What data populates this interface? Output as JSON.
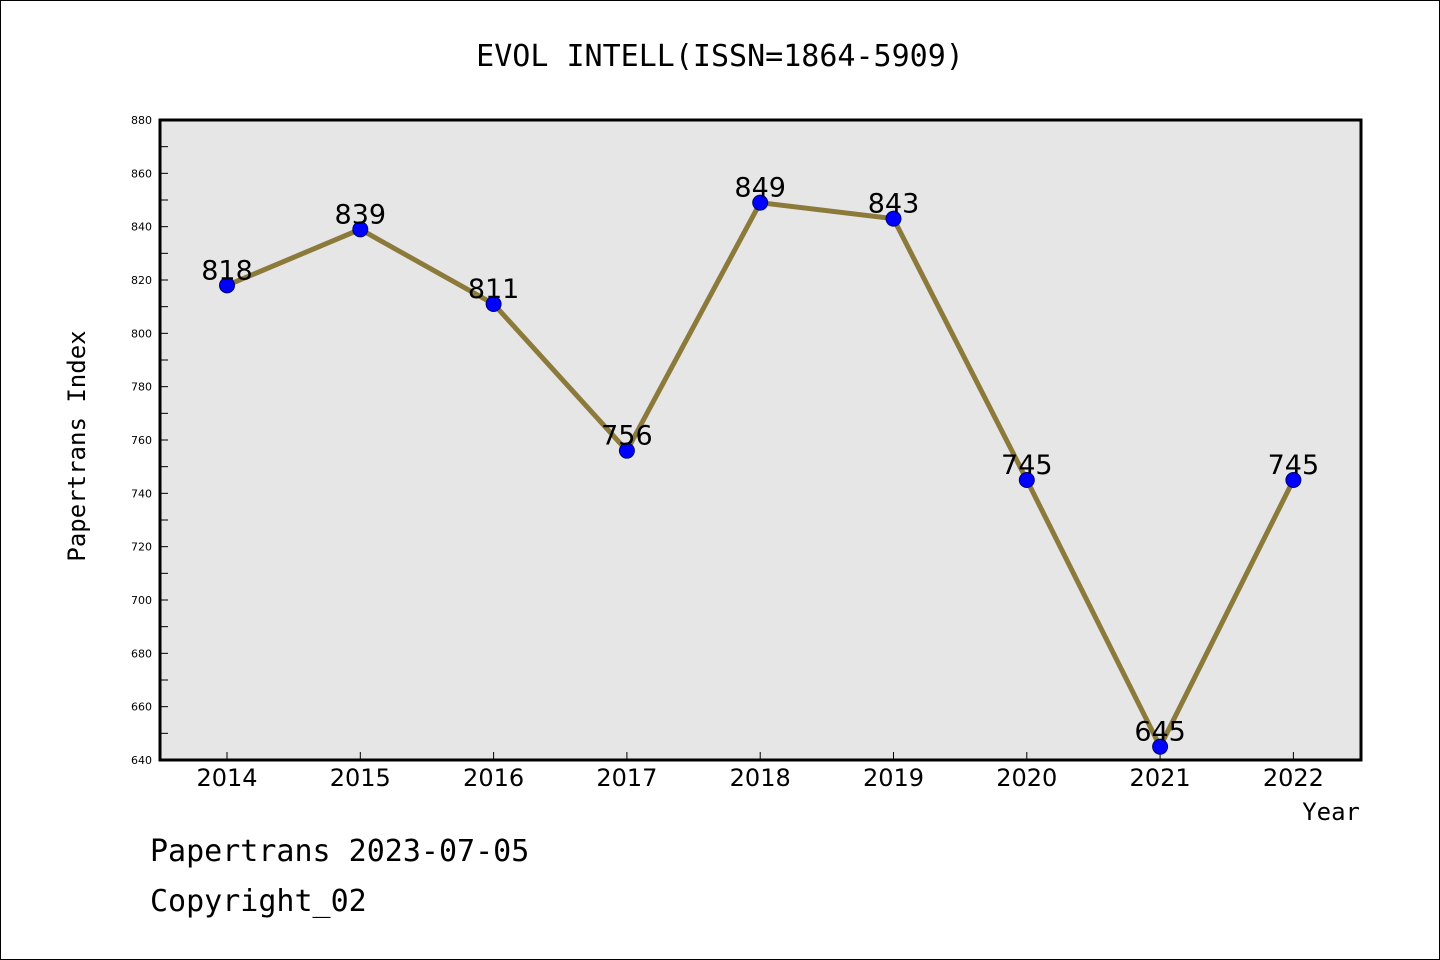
{
  "chart_data": {
    "type": "line",
    "title": "EVOL INTELL(ISSN=1864-5909)",
    "xlabel": "Year",
    "ylabel": "Papertrans Index",
    "categories": [
      "2014",
      "2015",
      "2016",
      "2017",
      "2018",
      "2019",
      "2020",
      "2021",
      "2022"
    ],
    "series": [
      {
        "values": [
          818,
          839,
          811,
          756,
          849,
          843,
          745,
          645,
          745
        ]
      }
    ],
    "ylim": [
      640,
      880
    ],
    "yticks": [
      640,
      660,
      680,
      700,
      720,
      740,
      760,
      780,
      800,
      820,
      840,
      860,
      880
    ],
    "grid": false,
    "data_labels": true,
    "colors": {
      "line": "#8b7a3a",
      "marker": "#0000ff",
      "plot_background": "#e6e6e6"
    }
  },
  "footer": {
    "line1": "Papertrans 2023-07-05",
    "line2": "Copyright_02"
  }
}
